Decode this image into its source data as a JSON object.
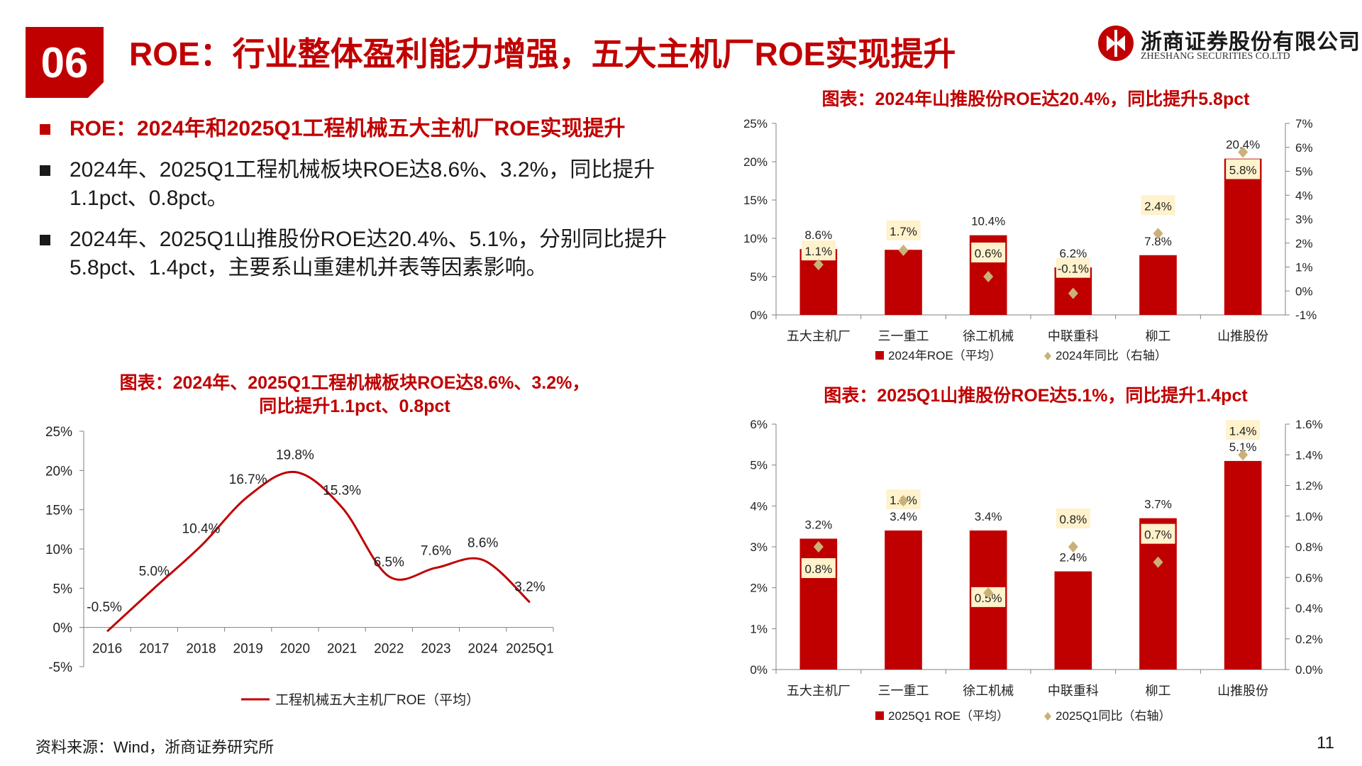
{
  "header": {
    "section_number": "06",
    "title": "ROE：行业整体盈利能力增强，五大主机厂ROE实现提升",
    "logo_name": "浙商证券股份有限公司",
    "logo_en": "ZHESHANG SECURITIES CO.LTD"
  },
  "bullets": [
    {
      "text": "ROE：2024年和2025Q1工程机械五大主机厂ROE实现提升",
      "style": "red"
    },
    {
      "text": "2024年、2025Q1工程机械板块ROE达8.6%、3.2%，同比提升1.1pct、0.8pct。",
      "style": "normal"
    },
    {
      "text": "2024年、2025Q1山推股份ROE达20.4%、5.1%，分别同比提升5.8pct、1.4pct，主要系山重建机并表等因素影响。",
      "style": "normal"
    }
  ],
  "footer": {
    "source": "资料来源：Wind，浙商证券研究所",
    "page_number": "11"
  },
  "colors": {
    "brand_red": "#c00000",
    "bar_red": "#c00000",
    "label_bg": "#fff2cc",
    "marker": "#c9b278",
    "axis": "#808080"
  },
  "chart_data": [
    {
      "type": "line",
      "title_lines": [
        "图表：2024年、2025Q1工程机械板块ROE达8.6%、3.2%，",
        "同比提升1.1pct、0.8pct"
      ],
      "x": [
        "2016",
        "2017",
        "2018",
        "2019",
        "2020",
        "2021",
        "2022",
        "2023",
        "2024",
        "2025Q1"
      ],
      "series": [
        {
          "name": "工程机械五大主机厂ROE（平均）",
          "values": [
            -0.5,
            5.0,
            10.4,
            16.7,
            19.8,
            15.3,
            6.5,
            7.6,
            8.6,
            3.2
          ],
          "labels": [
            "-0.5%",
            "5.0%",
            "10.4%",
            "16.7%",
            "19.8%",
            "15.3%",
            "6.5%",
            "7.6%",
            "8.6%",
            "3.2%"
          ]
        }
      ],
      "ylim": [
        -5,
        25
      ],
      "yticks": [
        "-5%",
        "0%",
        "5%",
        "10%",
        "15%",
        "20%",
        "25%"
      ],
      "legend_position": "bottom",
      "grid": false
    },
    {
      "type": "bar",
      "title": "图表：2024年山推股份ROE达20.4%，同比提升5.8pct",
      "categories": [
        "五大主机厂",
        "三一重工",
        "徐工机械",
        "中联重科",
        "柳工",
        "山推股份"
      ],
      "series": [
        {
          "name": "2024年ROE（平均）",
          "axis": "left",
          "values": [
            8.6,
            8.5,
            10.4,
            6.2,
            7.8,
            20.4
          ],
          "labels": [
            "8.6%",
            "8.5%",
            "10.4%",
            "6.2%",
            "7.8%",
            "20.4%"
          ]
        },
        {
          "name": "2024年同比（右轴）",
          "axis": "right",
          "kind": "marker",
          "values": [
            1.1,
            1.7,
            0.6,
            -0.1,
            2.4,
            5.8
          ],
          "labels": [
            "1.1%",
            "1.7%",
            "0.6%",
            "-0.1%",
            "2.4%",
            "5.8%"
          ]
        }
      ],
      "ylim": [
        0,
        25
      ],
      "yticks": [
        "0%",
        "5%",
        "10%",
        "15%",
        "20%",
        "25%"
      ],
      "y2lim": [
        -1,
        7
      ],
      "y2ticks": [
        "-1%",
        "0%",
        "1%",
        "2%",
        "3%",
        "4%",
        "5%",
        "6%",
        "7%"
      ],
      "legend_position": "bottom",
      "grid": false
    },
    {
      "type": "bar",
      "title": "图表：2025Q1山推股份ROE达5.1%，同比提升1.4pct",
      "categories": [
        "五大主机厂",
        "三一重工",
        "徐工机械",
        "中联重科",
        "柳工",
        "山推股份"
      ],
      "series": [
        {
          "name": "2025Q1 ROE（平均）",
          "axis": "left",
          "values": [
            3.2,
            3.4,
            3.4,
            2.4,
            3.7,
            5.1
          ],
          "labels": [
            "3.2%",
            "3.4%",
            "3.4%",
            "2.4%",
            "3.7%",
            "5.1%"
          ]
        },
        {
          "name": "2025Q1同比（右轴）",
          "axis": "right",
          "kind": "marker",
          "values": [
            0.8,
            1.1,
            0.5,
            0.8,
            0.7,
            1.4
          ],
          "labels": [
            "0.8%",
            "1.1%",
            "0.5%",
            "0.8%",
            "0.7%",
            "1.4%"
          ]
        }
      ],
      "ylim": [
        0,
        6
      ],
      "yticks": [
        "0%",
        "1%",
        "2%",
        "3%",
        "4%",
        "5%",
        "6%"
      ],
      "y2lim": [
        0,
        1.6
      ],
      "y2ticks": [
        "0.0%",
        "0.2%",
        "0.4%",
        "0.6%",
        "0.8%",
        "1.0%",
        "1.2%",
        "1.4%",
        "1.6%"
      ],
      "legend_position": "bottom",
      "grid": false
    }
  ]
}
